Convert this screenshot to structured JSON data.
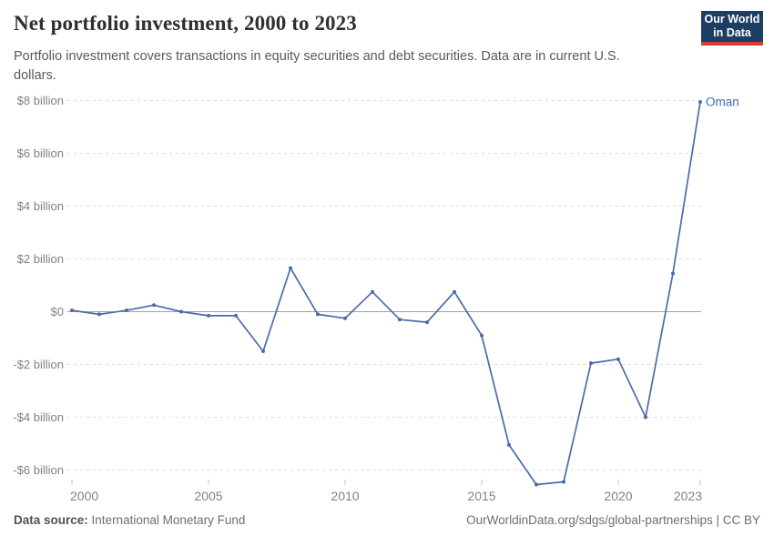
{
  "header": {
    "title": "Net portfolio investment, 2000 to 2023",
    "subtitle": "Portfolio investment covers transactions in equity securities and debt securities. Data are in current U.S. dollars.",
    "logo": {
      "line1": "Our World",
      "line2": "in Data"
    }
  },
  "colors": {
    "accent": "#4a6ba9",
    "entity_label": "#3d6cb2",
    "logo_bg": "#1d3d63",
    "logo_stripe": "#d73a3a",
    "gridline": "#dcdcdc",
    "zero_line": "#a3a3a3",
    "axis_text": "#818181",
    "tick_mark": "#c6c6c6"
  },
  "chart_data": {
    "type": "line",
    "title": "Net portfolio investment, 2000 to 2023",
    "unit": "current U.S. dollars, billions",
    "grid": "horizontal-dashed",
    "legend": "end-of-line-label",
    "xlim": [
      2000,
      2023
    ],
    "ylim": [
      -6.6,
      8.1
    ],
    "x": [
      2000,
      2001,
      2002,
      2003,
      2004,
      2005,
      2006,
      2007,
      2008,
      2009,
      2010,
      2011,
      2012,
      2013,
      2014,
      2015,
      2016,
      2017,
      2018,
      2019,
      2020,
      2021,
      2022,
      2023
    ],
    "series": [
      {
        "name": "Oman",
        "values": [
          0.05,
          -0.1,
          0.05,
          0.25,
          0,
          -0.15,
          -0.15,
          -1.5,
          1.65,
          -0.1,
          -0.25,
          0.75,
          -0.3,
          -0.4,
          0.75,
          -0.9,
          -5.05,
          -6.55,
          -6.45,
          -1.95,
          -1.8,
          -4.0,
          1.45,
          7.95
        ]
      }
    ],
    "x_ticks": [
      {
        "value": 2000,
        "label": "2000"
      },
      {
        "value": 2005,
        "label": "2005"
      },
      {
        "value": 2010,
        "label": "2010"
      },
      {
        "value": 2015,
        "label": "2015"
      },
      {
        "value": 2020,
        "label": "2020"
      },
      {
        "value": 2023,
        "label": "2023"
      }
    ],
    "y_ticks": [
      {
        "value": -6,
        "label": "-$6 billion"
      },
      {
        "value": -4,
        "label": "-$4 billion"
      },
      {
        "value": -2,
        "label": "-$2 billion"
      },
      {
        "value": 0,
        "label": "$0"
      },
      {
        "value": 2,
        "label": "$2 billion"
      },
      {
        "value": 4,
        "label": "$4 billion"
      },
      {
        "value": 6,
        "label": "$6 billion"
      },
      {
        "value": 8,
        "label": "$8 billion"
      }
    ],
    "entity_label": "Oman"
  },
  "footer": {
    "datasource_label": "Data source:",
    "datasource_value": "International Monetary Fund",
    "attribution": "OurWorldinData.org/sdgs/global-partnerships | CC BY"
  }
}
